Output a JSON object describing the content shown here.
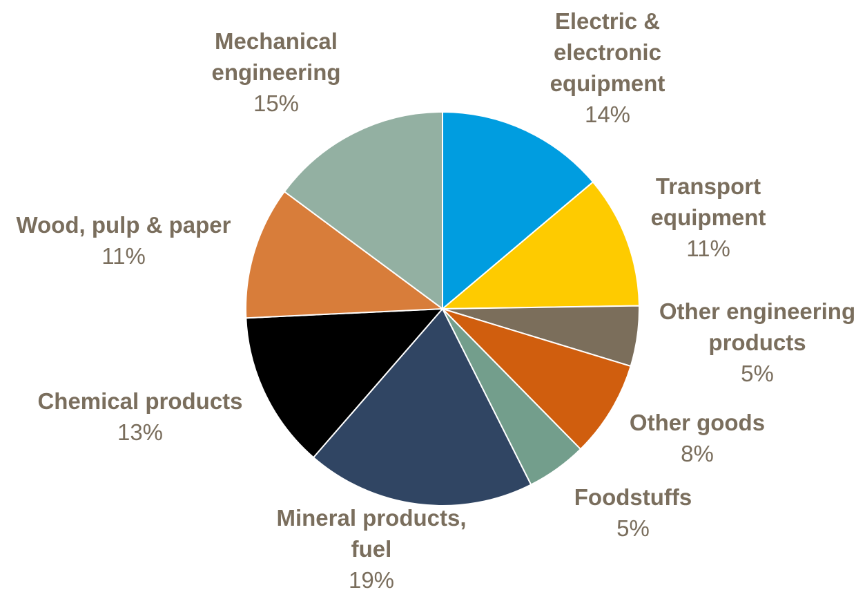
{
  "chart_data": {
    "type": "pie",
    "title": "",
    "label_color": "#7a6e5d",
    "slice_border_color": "#ffffff",
    "slices": [
      {
        "name": [
          "Electric &",
          "electronic",
          "equipment"
        ],
        "label": "14%",
        "value": 14,
        "color": "#009de0"
      },
      {
        "name": [
          "Transport",
          "equipment"
        ],
        "label": "11%",
        "value": 11,
        "color": "#fecb00"
      },
      {
        "name": [
          "Other engineering",
          "products"
        ],
        "label": "5%",
        "value": 5,
        "color": "#7b6e5b"
      },
      {
        "name": [
          "Other goods"
        ],
        "label": "8%",
        "value": 8,
        "color": "#d05e0e"
      },
      {
        "name": [
          "Foodstuffs"
        ],
        "label": "5%",
        "value": 5,
        "color": "#739e8c"
      },
      {
        "name": [
          "Mineral products,",
          "fuel"
        ],
        "label": "19%",
        "value": 19,
        "color": "#304563"
      },
      {
        "name": [
          "Chemical products"
        ],
        "label": "13%",
        "value": 13,
        "color": "#000000"
      },
      {
        "name": [
          "Wood, pulp & paper"
        ],
        "label": "11%",
        "value": 11,
        "color": "#d87d3a"
      },
      {
        "name": [
          "Mechanical",
          "engineering"
        ],
        "label": "15%",
        "value": 15,
        "color": "#93b0a2"
      }
    ]
  }
}
